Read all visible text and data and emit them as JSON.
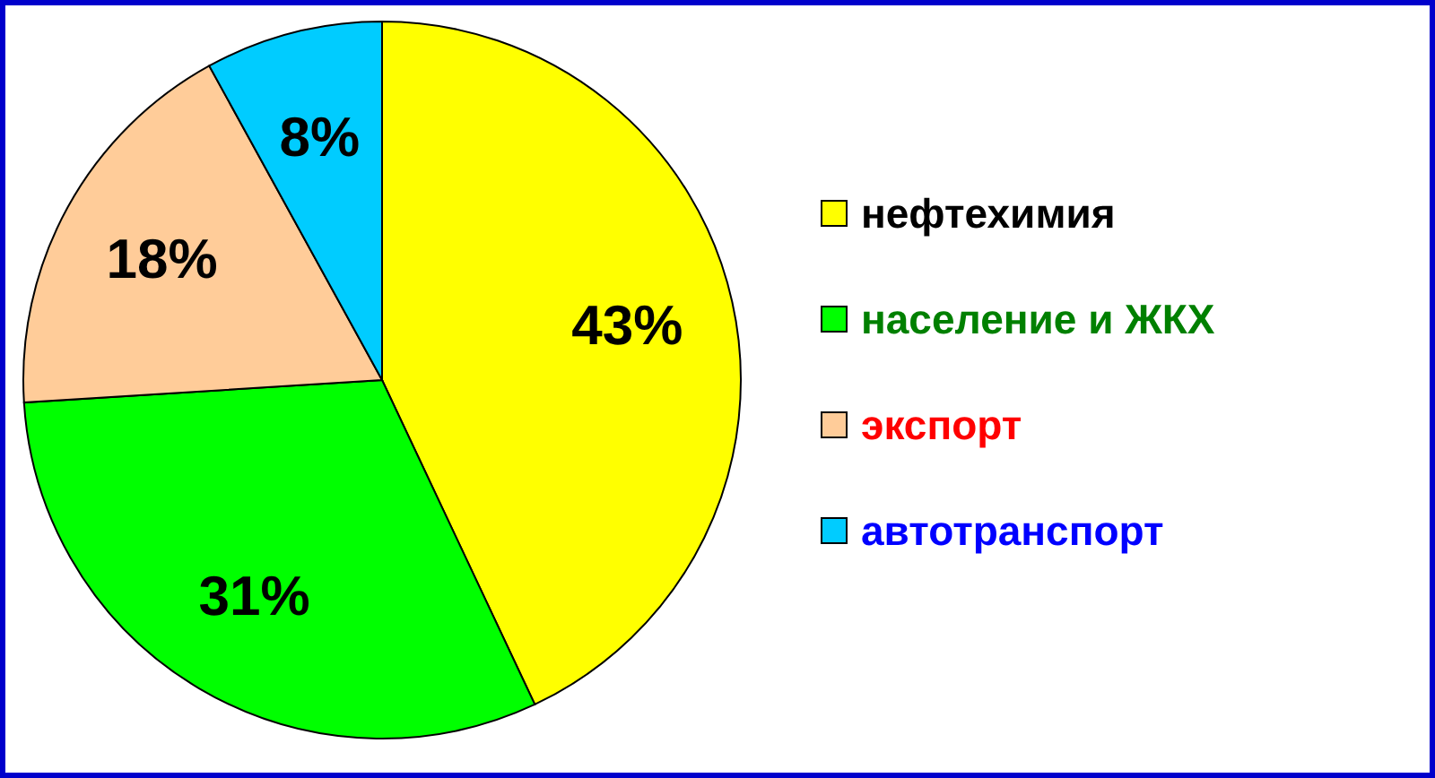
{
  "chart_data": {
    "type": "pie",
    "categories": [
      "нефтехимия",
      "население и ЖКХ",
      "экспорт",
      "автотранспорт"
    ],
    "values": [
      43,
      31,
      18,
      8
    ],
    "colors": [
      "#ffff00",
      "#00ff00",
      "#ffcc99",
      "#00ccff"
    ],
    "value_labels": [
      "43%",
      "31%",
      "18%",
      "8%"
    ],
    "legend": "right"
  }
}
